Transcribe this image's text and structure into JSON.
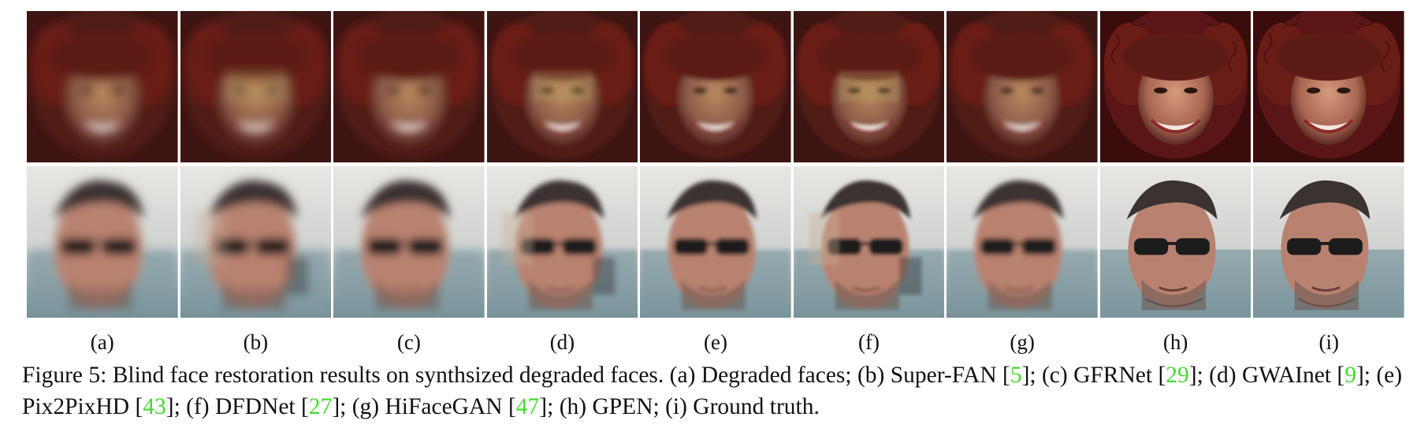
{
  "figure": {
    "panels": [
      {
        "label": "(a)",
        "method": "Degraded faces"
      },
      {
        "label": "(b)",
        "method": "Super-FAN"
      },
      {
        "label": "(c)",
        "method": "GFRNet"
      },
      {
        "label": "(d)",
        "method": "GWAInet"
      },
      {
        "label": "(e)",
        "method": "Pix2PixHD"
      },
      {
        "label": "(f)",
        "method": "DFDNet"
      },
      {
        "label": "(g)",
        "method": "HiFaceGAN"
      },
      {
        "label": "(h)",
        "method": "GPEN"
      },
      {
        "label": "(i)",
        "method": "Ground truth"
      }
    ],
    "rows": [
      "face-curly-hair-woman",
      "face-man-sunglasses"
    ],
    "caption": {
      "prefix": "Figure 5: Blind face restoration results on synthsized degraded faces. (a) Degraded faces; (b) Super-FAN [",
      "ref1": "5",
      "t1": "]; (c) GFRNet [",
      "ref2": "29",
      "t2": "]; (d) GWAInet [",
      "ref3": "9",
      "t3": "]; (e) Pix2PixHD [",
      "ref4": "43",
      "t4": "]; (f) DFDNet [",
      "ref5": "27",
      "t5": "]; (g) HiFaceGAN [",
      "ref6": "47",
      "t6": "]; (h) GPEN; (i) Ground truth."
    },
    "colors": {
      "reference_link": "#45d92e",
      "text": "#111111",
      "hair": "#4a1410",
      "skin": "#c8846a"
    }
  }
}
